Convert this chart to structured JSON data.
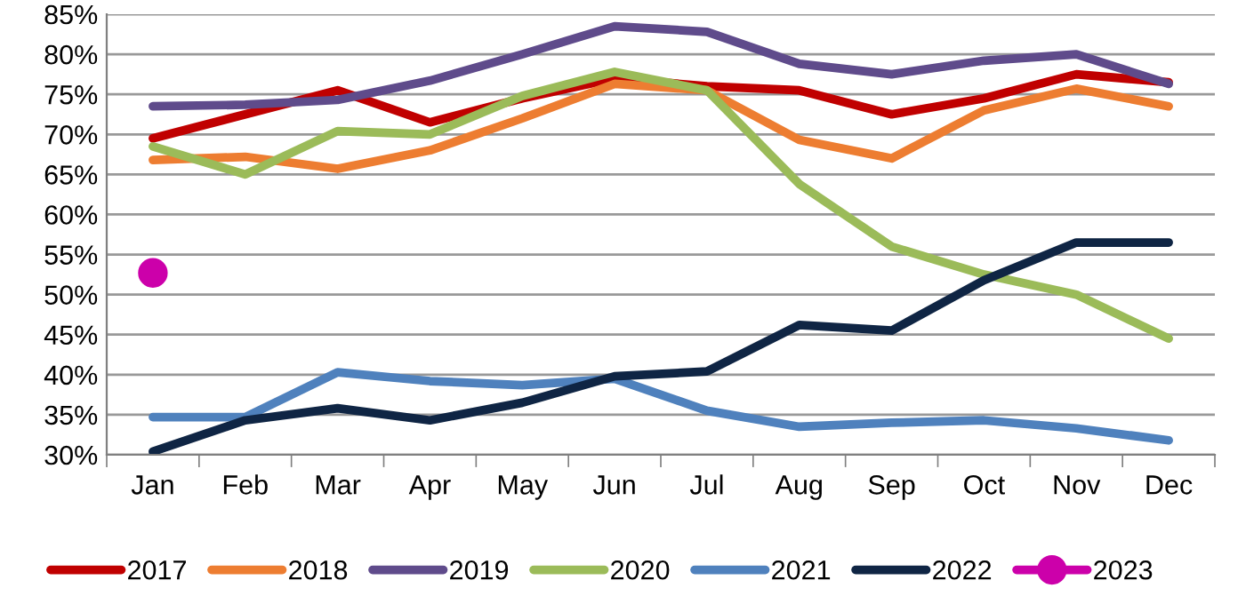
{
  "chart_data": {
    "type": "line",
    "categories": [
      "Jan",
      "Feb",
      "Mar",
      "Apr",
      "May",
      "Jun",
      "Jul",
      "Aug",
      "Sep",
      "Oct",
      "Nov",
      "Dec"
    ],
    "series": [
      {
        "name": "2017",
        "color": "#c00000",
        "values": [
          69.5,
          72.5,
          75.5,
          71.5,
          74.5,
          77,
          76,
          75.5,
          72.5,
          74.5,
          77.5,
          76.5
        ]
      },
      {
        "name": "2018",
        "color": "#ed7d31",
        "values": [
          66.8,
          67.2,
          65.7,
          68,
          72,
          76.3,
          75.5,
          69.3,
          67,
          73,
          75.7,
          73.5
        ]
      },
      {
        "name": "2019",
        "color": "#5f4b8b",
        "values": [
          73.5,
          73.7,
          74.3,
          76.7,
          80,
          83.5,
          82.8,
          78.8,
          77.5,
          79.2,
          80,
          76.3
        ]
      },
      {
        "name": "2020",
        "color": "#9bbb59",
        "values": [
          68.5,
          65,
          70.4,
          70,
          74.8,
          77.8,
          75.5,
          63.8,
          56,
          52.5,
          50,
          44.5
        ]
      },
      {
        "name": "2021",
        "color": "#4f81bd",
        "values": [
          34.7,
          34.7,
          40.3,
          39.2,
          38.7,
          39.5,
          35.5,
          33.5,
          34,
          34.3,
          33.3,
          31.8
        ]
      },
      {
        "name": "2022",
        "color": "#0f2544",
        "values": [
          30.4,
          34.3,
          35.8,
          34.3,
          36.5,
          39.8,
          40.4,
          46.2,
          45.5,
          51.8,
          56.5,
          56.5
        ]
      },
      {
        "name": "2023",
        "color": "#cc00aa",
        "marker": "circle",
        "values": [
          52.7,
          null,
          null,
          null,
          null,
          null,
          null,
          null,
          null,
          null,
          null,
          null
        ]
      }
    ],
    "ylim": [
      30,
      85
    ],
    "yticks": [
      {
        "value": 30,
        "label": "30%"
      },
      {
        "value": 35,
        "label": "35%"
      },
      {
        "value": 40,
        "label": "40%"
      },
      {
        "value": 45,
        "label": "45%"
      },
      {
        "value": 50,
        "label": "50%"
      },
      {
        "value": 55,
        "label": "55%"
      },
      {
        "value": 60,
        "label": "60%"
      },
      {
        "value": 65,
        "label": "65%"
      },
      {
        "value": 70,
        "label": "70%"
      },
      {
        "value": 75,
        "label": "75%"
      },
      {
        "value": 80,
        "label": "80%"
      },
      {
        "value": 85,
        "label": "85%"
      }
    ],
    "grid": "y",
    "legend": "bottom"
  }
}
